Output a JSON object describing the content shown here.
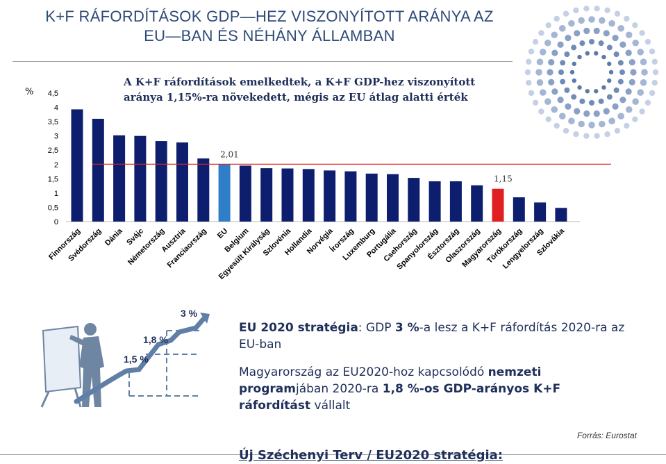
{
  "header": {
    "title_line1": "K+F  RÁFORDÍTÁSOK GDP—HEZ VISZONYÍTOTT ARÁNYA AZ",
    "title_line2": "EU—BAN  ÉS  NÉHÁNY  ÁLLAMBAN"
  },
  "chart_subtitle": {
    "line1": "A K+F ráfordítások emelkedtek, a K+F GDP-hez viszonyított",
    "line2": "aránya 1,15%-ra növekedett, mégis az EU átlag alatti érték"
  },
  "chart_data": {
    "type": "bar",
    "ylabel": "%",
    "ylim": [
      0,
      4.5
    ],
    "yticks": [
      "0",
      "0,5",
      "1",
      "1,5",
      "2",
      "2,5",
      "3",
      "3,5",
      "4",
      "4,5"
    ],
    "categories": [
      "Finnország",
      "Svédország",
      "Dánia",
      "Svájc",
      "Németország",
      "Ausztria",
      "Franciaország",
      "EU",
      "Belgium",
      "Egyesült Királyság",
      "Szlovénia",
      "Hollandia",
      "Norvégia",
      "Írország",
      "Luxemburg",
      "Portugália",
      "Csehország",
      "Spanyolország",
      "Észtország",
      "Olaszország",
      "Magyarország",
      "Törökország",
      "Lengyelország",
      "Szlovákia"
    ],
    "values": [
      3.93,
      3.6,
      3.02,
      3.0,
      2.82,
      2.77,
      2.21,
      2.01,
      1.96,
      1.87,
      1.86,
      1.84,
      1.79,
      1.76,
      1.68,
      1.66,
      1.53,
      1.41,
      1.41,
      1.27,
      1.15,
      0.85,
      0.67,
      0.48
    ],
    "bar_color": "#0d1e6e",
    "highlight_colors": {
      "EU": "#2e7fc8",
      "Magyarország": "#e02020"
    },
    "reference_line": {
      "value": 2.01,
      "color": "#e02020"
    },
    "data_labels": [
      {
        "category": "EU",
        "text": "2,01"
      },
      {
        "category": "Magyarország",
        "text": "1,15"
      }
    ],
    "grid": false
  },
  "illustration": {
    "labels": [
      "3 %",
      "1,8 %",
      "1,5 %"
    ]
  },
  "text": {
    "p1_bold": "EU 2020 stratégia",
    "p1_a": ": GDP ",
    "p1_bold2": "3 %",
    "p1_b": "-a lesz a K+F ráfordítás 2020-ra az EU-ban",
    "p2_a": "Magyarország az EU2020-hoz kapcsolódó ",
    "p2_bold1": "nemzeti program",
    "p2_b": "jában 2020-ra ",
    "p2_bold2": "1,8 %-os GDP-arányos K+F ráfordítást",
    "p2_c": " vállalt"
  },
  "source": "Forrás:  Eurostat",
  "bottom_heading": "Új Széchenyi Terv / EU2020 stratégia:"
}
